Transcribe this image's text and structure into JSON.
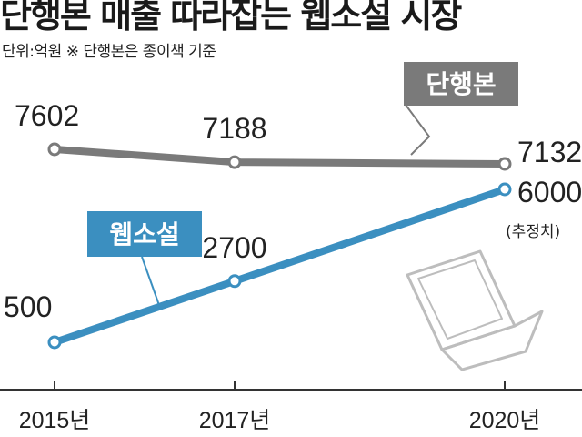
{
  "chart_data": {
    "type": "line",
    "title": "단행본 매출 따라잡는 웹소설 시장",
    "subtitle": "단위:억원  ※ 단행본은 종이책 기준",
    "categories": [
      "2015년",
      "2017년",
      "2020년"
    ],
    "x": [
      2015,
      2017,
      2020
    ],
    "series": [
      {
        "name": "단행본",
        "values": [
          7602,
          7188,
          7132
        ],
        "labels": [
          "7602",
          "7188",
          "7132"
        ],
        "color": "#7a7a7a"
      },
      {
        "name": "웹소설",
        "values": [
          500,
          2700,
          6000
        ],
        "labels": [
          "500",
          "2700",
          "6000"
        ],
        "color": "#3b8fc0"
      }
    ],
    "annotations": [
      {
        "text": "(추정치)"
      }
    ],
    "grid": false,
    "legend_placement": "inline-callouts"
  }
}
